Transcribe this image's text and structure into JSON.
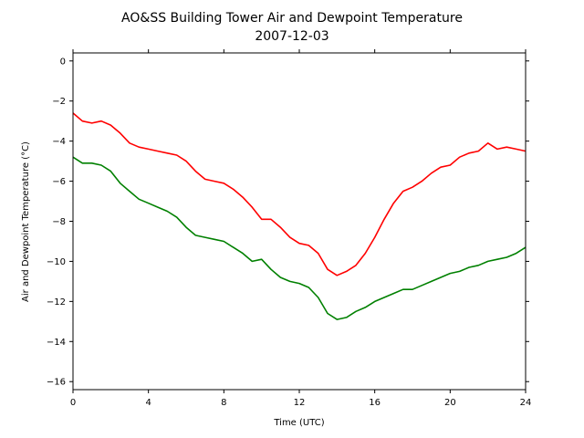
{
  "chart_data": {
    "type": "line",
    "title": "AO&SS Building Tower Air and Dewpoint Temperature",
    "subtitle": "2007-12-03",
    "xlabel": "Time (UTC)",
    "ylabel": "Air and Dewpoint Temperature (°C)",
    "xlim": [
      0,
      24
    ],
    "ylim": [
      -16.4,
      0.4
    ],
    "xticks": [
      0,
      4,
      8,
      12,
      16,
      20,
      24
    ],
    "yticks": [
      0,
      -2,
      -4,
      -6,
      -8,
      -10,
      -12,
      -14,
      -16
    ],
    "grid": false,
    "legend": "none",
    "series": [
      {
        "color": "#ff0000",
        "x": [
          0,
          0.5,
          1,
          1.5,
          2,
          2.5,
          3,
          3.5,
          4,
          4.5,
          5,
          5.5,
          6,
          6.5,
          7,
          7.5,
          8,
          8.5,
          9,
          9.5,
          10,
          10.5,
          11,
          11.5,
          12,
          12.5,
          13,
          13.5,
          14,
          14.5,
          15,
          15.5,
          16,
          16.5,
          17,
          17.5,
          18,
          18.5,
          19,
          19.5,
          20,
          20.5,
          21,
          21.5,
          22,
          22.5,
          23,
          23.5,
          24
        ],
        "y": [
          -2.6,
          -3.0,
          -3.1,
          -3.0,
          -3.2,
          -3.6,
          -4.1,
          -4.3,
          -4.4,
          -4.5,
          -4.6,
          -4.7,
          -5.0,
          -5.5,
          -5.9,
          -6.0,
          -6.1,
          -6.4,
          -6.8,
          -7.3,
          -7.9,
          -7.9,
          -8.3,
          -8.8,
          -9.1,
          -9.2,
          -9.6,
          -10.4,
          -10.7,
          -10.5,
          -10.2,
          -9.6,
          -8.8,
          -7.9,
          -7.1,
          -6.5,
          -6.3,
          -6.0,
          -5.6,
          -5.3,
          -5.2,
          -4.8,
          -4.6,
          -4.5,
          -4.1,
          -4.4,
          -4.3,
          -4.4,
          -4.5
        ]
      },
      {
        "color": "#008000",
        "x": [
          0,
          0.5,
          1,
          1.5,
          2,
          2.5,
          3,
          3.5,
          4,
          4.5,
          5,
          5.5,
          6,
          6.5,
          7,
          7.5,
          8,
          8.5,
          9,
          9.5,
          10,
          10.5,
          11,
          11.5,
          12,
          12.5,
          13,
          13.5,
          14,
          14.5,
          15,
          15.5,
          16,
          16.5,
          17,
          17.5,
          18,
          18.5,
          19,
          19.5,
          20,
          20.5,
          21,
          21.5,
          22,
          22.5,
          23,
          23.5,
          24
        ],
        "y": [
          -4.8,
          -5.1,
          -5.1,
          -5.2,
          -5.5,
          -6.1,
          -6.5,
          -6.9,
          -7.1,
          -7.3,
          -7.5,
          -7.8,
          -8.3,
          -8.7,
          -8.8,
          -8.9,
          -9.0,
          -9.3,
          -9.6,
          -10.0,
          -9.9,
          -10.4,
          -10.8,
          -11.0,
          -11.1,
          -11.3,
          -11.8,
          -12.6,
          -12.9,
          -12.8,
          -12.5,
          -12.3,
          -12.0,
          -11.8,
          -11.6,
          -11.4,
          -11.4,
          -11.2,
          -11.0,
          -10.8,
          -10.6,
          -10.5,
          -10.3,
          -10.2,
          -10.0,
          -9.9,
          -9.8,
          -9.6,
          -9.3
        ]
      }
    ]
  }
}
